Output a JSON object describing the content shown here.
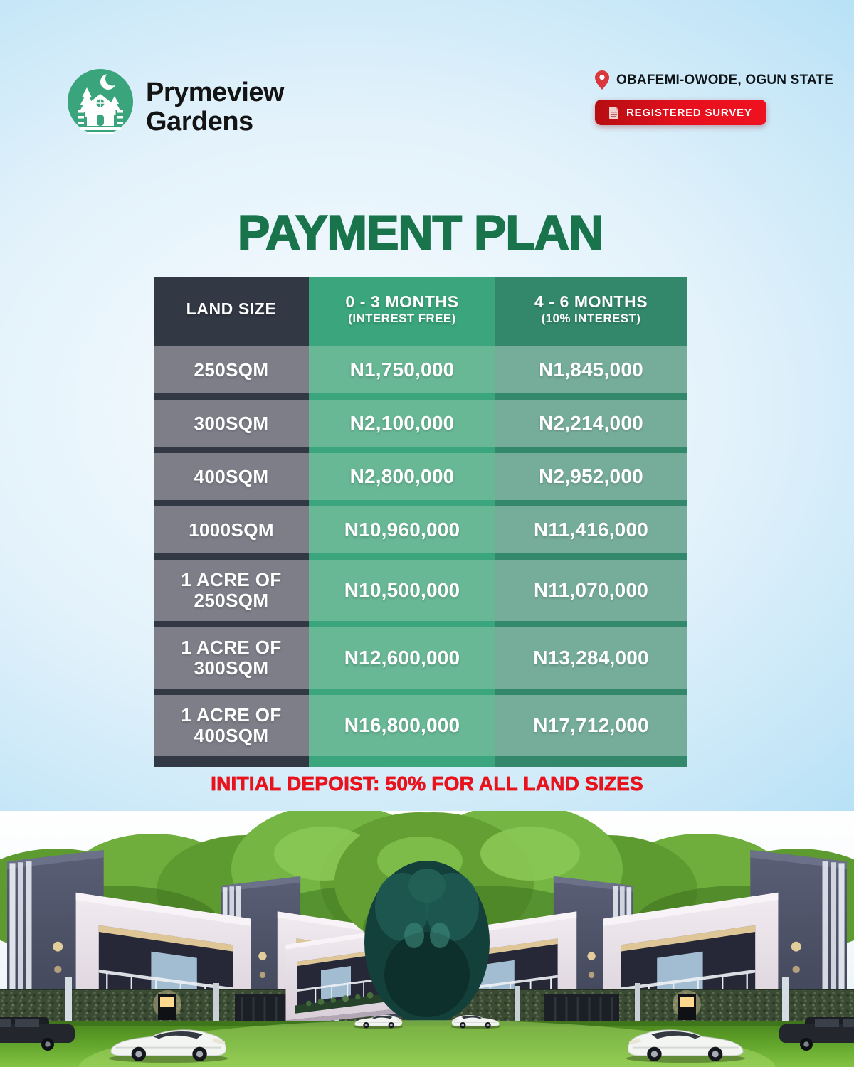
{
  "brand": {
    "name_line1": "Prymeview",
    "name_line2": "Gardens"
  },
  "header": {
    "location": "OBAFEMI-OWODE, OGUN STATE",
    "badge_label": "REGISTERED SURVEY"
  },
  "title": "PAYMENT PLAN",
  "table": {
    "columns": [
      {
        "label": "LAND SIZE",
        "sublabel": ""
      },
      {
        "label": "0 - 3 MONTHS",
        "sublabel": "(INTEREST FREE)"
      },
      {
        "label": "4 - 6 MONTHS",
        "sublabel": "(10% INTEREST)"
      }
    ],
    "rows": [
      {
        "land_size": "250SQM",
        "price_0_3": "N1,750,000",
        "price_4_6": "N1,845,000"
      },
      {
        "land_size": "300SQM",
        "price_0_3": "N2,100,000",
        "price_4_6": "N2,214,000"
      },
      {
        "land_size": "400SQM",
        "price_0_3": "N2,800,000",
        "price_4_6": "N2,952,000"
      },
      {
        "land_size": "1000SQM",
        "price_0_3": "N10,960,000",
        "price_4_6": "N11,416,000"
      },
      {
        "land_size": "1 ACRE OF 250SQM",
        "price_0_3": "N10,500,000",
        "price_4_6": "N11,070,000"
      },
      {
        "land_size": "1 ACRE OF 300SQM",
        "price_0_3": "N12,600,000",
        "price_4_6": "N13,284,000"
      },
      {
        "land_size": "1 ACRE OF 400SQM",
        "price_0_3": "N16,800,000",
        "price_4_6": "N17,712,000"
      }
    ]
  },
  "note": "INITIAL DEPOIST: 50% FOR ALL LAND SIZES",
  "icons": {
    "logo": "cabin-trees-moon-logo",
    "pin": "map-pin-icon",
    "doc": "document-icon"
  },
  "colors": {
    "title_green": "#19744c",
    "brand_green": "#3aa57c",
    "badge_red": "#e8101e",
    "note_red": "#e8131c",
    "col_land_header": "#323844",
    "col_land_row": "#7d7e88",
    "col_m03_header": "#3ba57d",
    "col_m03_row": "#68b795",
    "col_m46_header": "#33886b",
    "col_m46_row": "#76ad9a"
  }
}
